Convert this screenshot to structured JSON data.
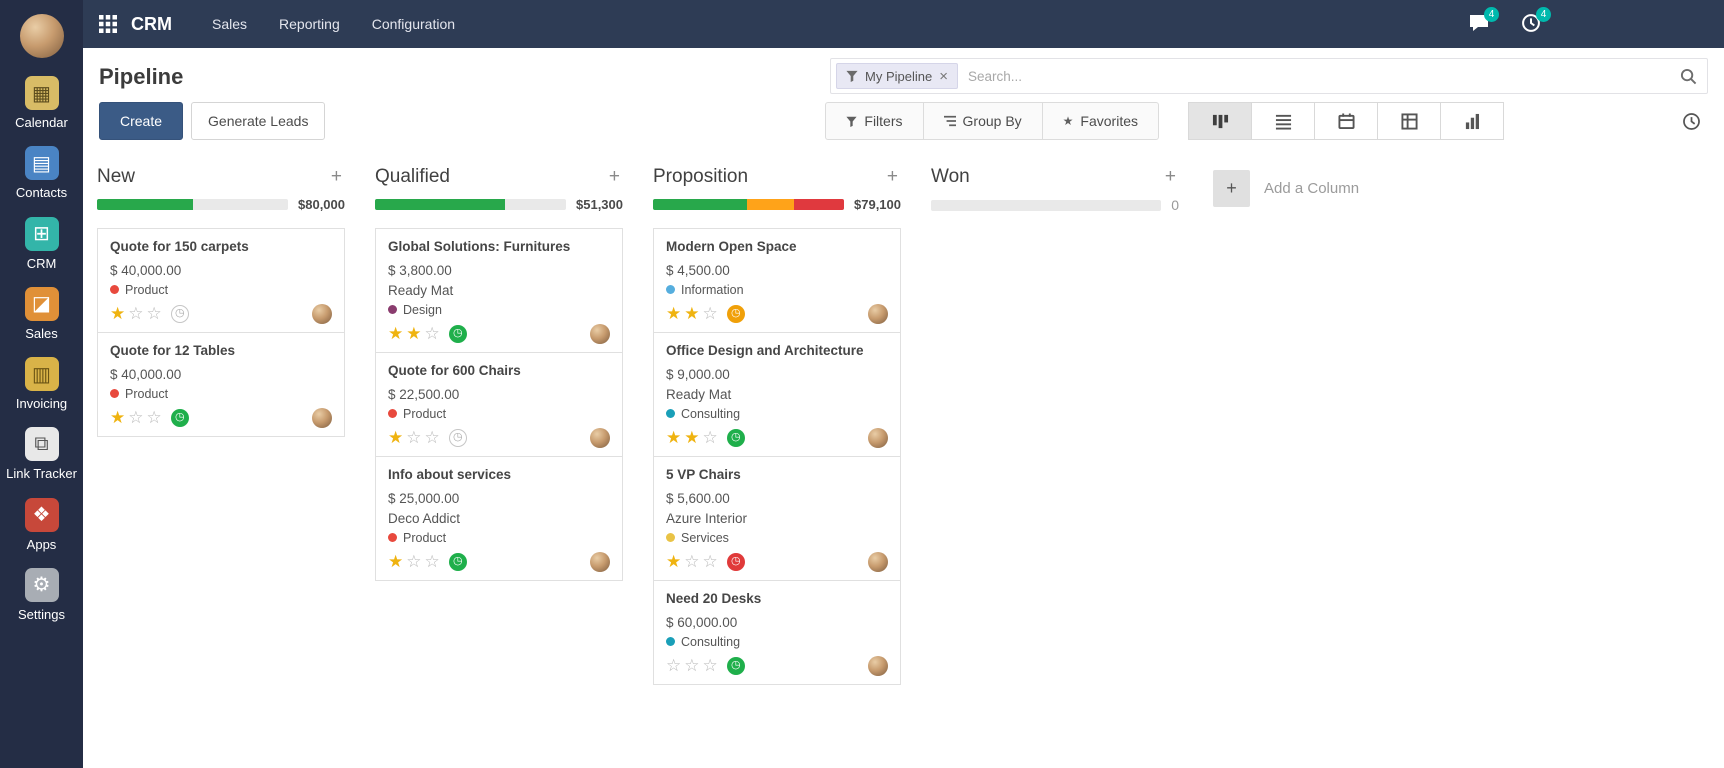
{
  "topbar": {
    "brand": "CRM",
    "menus": [
      {
        "label": "Sales"
      },
      {
        "label": "Reporting"
      },
      {
        "label": "Configuration"
      }
    ],
    "messages_badge": "4",
    "activities_badge": "4"
  },
  "sidebar": {
    "items": [
      {
        "label": "Calendar",
        "glyph": "▦",
        "color": "#d8bc66",
        "glyph_color": "#5d4d1e"
      },
      {
        "label": "Contacts",
        "glyph": "▤",
        "color": "#4a84c4",
        "glyph_color": "#ffffff"
      },
      {
        "label": "CRM",
        "glyph": "⊞",
        "color": "#33b5a9",
        "glyph_color": "#ffffff"
      },
      {
        "label": "Sales",
        "glyph": "◪",
        "color": "#e09038",
        "glyph_color": "#ffffff"
      },
      {
        "label": "Invoicing",
        "glyph": "▥",
        "color": "#d9b348",
        "glyph_color": "#6b5414"
      },
      {
        "label": "Link Tracker",
        "glyph": "⧉",
        "color": "#e8e8e8",
        "glyph_color": "#555555"
      },
      {
        "label": "Apps",
        "glyph": "❖",
        "color": "#c7483a",
        "glyph_color": "#ffffff"
      },
      {
        "label": "Settings",
        "glyph": "⚙",
        "color": "#a8adb4",
        "glyph_color": "#ffffff"
      }
    ]
  },
  "header": {
    "title": "Pipeline"
  },
  "search": {
    "chip_label": "My Pipeline",
    "placeholder": "Search..."
  },
  "controls": {
    "create": "Create",
    "generate_leads": "Generate Leads",
    "filters": "Filters",
    "group_by": "Group By",
    "favorites": "Favorites"
  },
  "icons": {
    "plus": "+",
    "activity_clock": "◷",
    "close": "×",
    "star": "★"
  },
  "colors": {
    "star_gold": "#efb310",
    "activity_done": "#1faf4b",
    "activity_orange": "#f0a009",
    "activity_overdue": "#e03a3a",
    "badge": "#00b9ad",
    "create_button": "#3b5b86",
    "progress_green": "#28a84b",
    "progress_orange": "#ffa319",
    "progress_red": "#e0393e"
  },
  "board": {
    "add_column_label": "Add a Column",
    "columns": [
      {
        "name": "New",
        "amount": "$80,000",
        "progress": [
          {
            "color": "#28a84b",
            "pct": 50
          }
        ],
        "cards": [
          {
            "title": "Quote for 150 carpets",
            "amount": "$ 40,000.00",
            "tag": "Product",
            "tag_color": "#e8493d",
            "stars": 1,
            "activity": "gray"
          },
          {
            "title": "Quote for 12 Tables",
            "amount": "$ 40,000.00",
            "tag": "Product",
            "tag_color": "#e8493d",
            "stars": 1,
            "activity": "green"
          }
        ]
      },
      {
        "name": "Qualified",
        "amount": "$51,300",
        "progress": [
          {
            "color": "#28a84b",
            "pct": 68
          }
        ],
        "cards": [
          {
            "title": "Global Solutions: Furnitures",
            "amount": "$ 3,800.00",
            "partner": "Ready Mat",
            "tag": "Design",
            "tag_color": "#8a3c6e",
            "stars": 2,
            "activity": "green"
          },
          {
            "title": "Quote for 600 Chairs",
            "amount": "$ 22,500.00",
            "tag": "Product",
            "tag_color": "#e8493d",
            "stars": 1,
            "activity": "gray"
          },
          {
            "title": "Info about services",
            "amount": "$ 25,000.00",
            "partner": "Deco Addict",
            "tag": "Product",
            "tag_color": "#e8493d",
            "stars": 1,
            "activity": "green"
          }
        ]
      },
      {
        "name": "Proposition",
        "amount": "$79,100",
        "progress": [
          {
            "color": "#28a84b",
            "pct": 49
          },
          {
            "color": "#ffa319",
            "pct": 25
          },
          {
            "color": "#e0393e",
            "pct": 26
          }
        ],
        "cards": [
          {
            "title": "Modern Open Space",
            "amount": "$ 4,500.00",
            "tag": "Information",
            "tag_color": "#56aede",
            "stars": 2,
            "activity": "orange"
          },
          {
            "title": "Office Design and Architecture",
            "amount": "$ 9,000.00",
            "partner": "Ready Mat",
            "tag": "Consulting",
            "tag_color": "#1a9fb8",
            "stars": 2,
            "activity": "green"
          },
          {
            "title": "5 VP Chairs",
            "amount": "$ 5,600.00",
            "partner": "Azure Interior",
            "tag": "Services",
            "tag_color": "#e9c346",
            "stars": 1,
            "activity": "red"
          },
          {
            "title": "Need 20 Desks",
            "amount": "$ 60,000.00",
            "tag": "Consulting",
            "tag_color": "#1a9fb8",
            "stars": 0,
            "activity": "green"
          }
        ]
      },
      {
        "name": "Won",
        "amount": "0",
        "progress": [],
        "cards": []
      }
    ]
  }
}
